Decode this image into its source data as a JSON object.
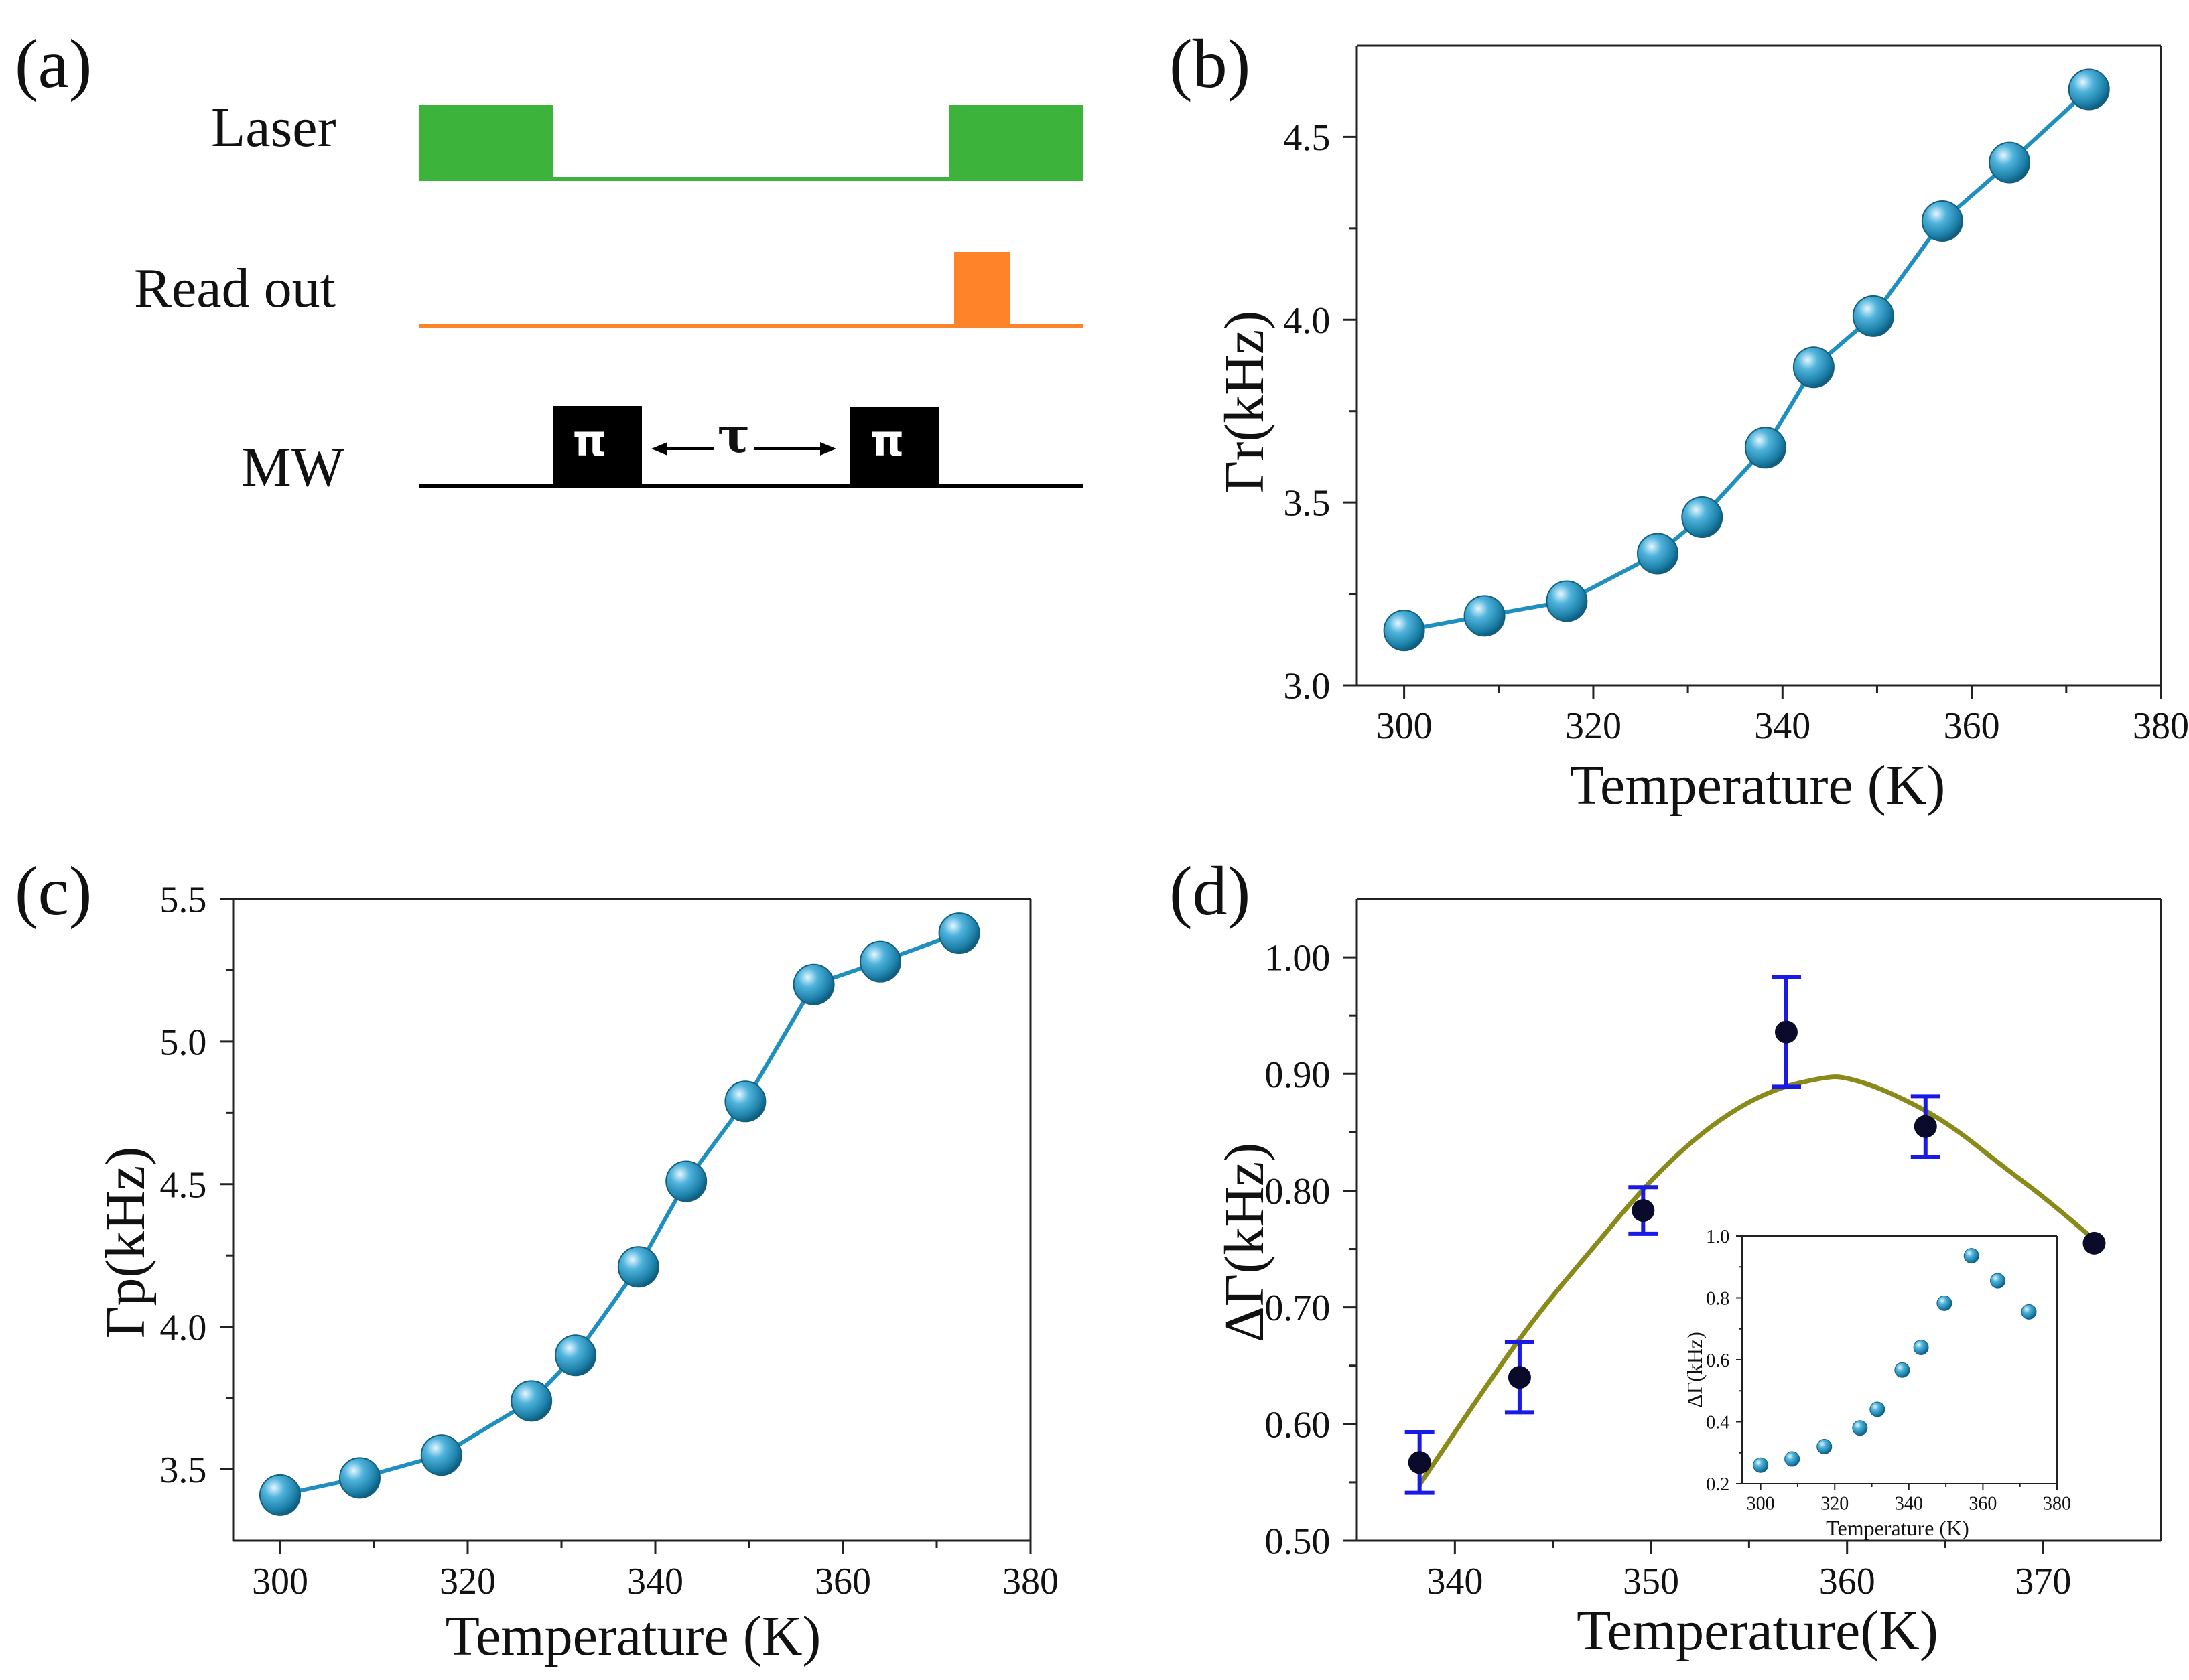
{
  "colors": {
    "laser": "#3cb43c",
    "readout": "#ff8429",
    "mw": "#000000",
    "series": "#1f8fbf",
    "marker_light": "#d9f1ff",
    "marker_dark": "#13708f",
    "error_bar": "#1a1ae6",
    "fit": "#8a8a1a",
    "data_point": "#0a0a2a"
  },
  "panel_a": {
    "label": "(a)",
    "laser_label": "Laser",
    "readout_label": "Read out",
    "mw_label": "MW",
    "pi_label": "π",
    "tau_label": "τ"
  },
  "chart_data": [
    {
      "panel": "(b)",
      "type": "line",
      "title": "",
      "xlabel": "Temperature (K)",
      "ylabel": "Γr(kHz)",
      "xlim": [
        295,
        380
      ],
      "ylim": [
        3.0,
        4.75
      ],
      "xticks": [
        300,
        320,
        340,
        360,
        380
      ],
      "yticks": [
        3.0,
        3.5,
        4.0,
        4.5
      ],
      "grid": false,
      "series": [
        {
          "name": "Γr",
          "x": [
            300,
            308.5,
            317.2,
            326.8,
            331.5,
            338.2,
            343.3,
            349.6,
            356.9,
            364.0,
            372.4
          ],
          "values": [
            3.15,
            3.19,
            3.23,
            3.36,
            3.46,
            3.65,
            3.87,
            4.01,
            4.27,
            4.43,
            4.63
          ]
        }
      ]
    },
    {
      "panel": "(c)",
      "type": "line",
      "title": "",
      "xlabel": "Temperature (K)",
      "ylabel": "Γp(kHz)",
      "xlim": [
        295,
        380
      ],
      "ylim": [
        3.25,
        5.5
      ],
      "xticks": [
        300,
        320,
        340,
        360,
        380
      ],
      "yticks": [
        3.5,
        4.0,
        4.5,
        5.0,
        5.5
      ],
      "grid": false,
      "series": [
        {
          "name": "Γp",
          "x": [
            300,
            308.5,
            317.2,
            326.8,
            331.5,
            338.2,
            343.3,
            349.6,
            356.9,
            364.0,
            372.4
          ],
          "values": [
            3.41,
            3.47,
            3.55,
            3.74,
            3.9,
            4.21,
            4.51,
            4.79,
            5.2,
            5.28,
            5.38
          ]
        }
      ]
    },
    {
      "panel": "(d)",
      "type": "scatter",
      "title": "",
      "xlabel": "Temperature(K)",
      "ylabel": "ΔΓ(kHz)",
      "xlim": [
        335,
        376
      ],
      "ylim": [
        0.5,
        1.05
      ],
      "xticks": [
        340,
        350,
        360,
        370
      ],
      "yticks": [
        0.5,
        0.6,
        0.7,
        0.8,
        0.9,
        1.0
      ],
      "grid": false,
      "series": [
        {
          "name": "ΔΓ",
          "x": [
            338.2,
            343.3,
            349.6,
            356.9,
            364.0,
            372.6
          ],
          "values": [
            0.567,
            0.64,
            0.783,
            0.936,
            0.855,
            0.755
          ],
          "errors": [
            0.026,
            0.03,
            0.02,
            0.047,
            0.026,
            0.0
          ]
        },
        {
          "name": "fit",
          "type": "line",
          "x": [
            338.2,
            341,
            344,
            347,
            350,
            353,
            356,
            359,
            360,
            362,
            365,
            368,
            370,
            372.6
          ],
          "values": [
            0.548,
            0.618,
            0.69,
            0.75,
            0.81,
            0.856,
            0.886,
            0.898,
            0.897,
            0.886,
            0.86,
            0.82,
            0.795,
            0.758
          ]
        }
      ],
      "inset": {
        "type": "scatter",
        "xlabel": "Temperature (K)",
        "ylabel": "ΔΓ(kHz)",
        "xlim": [
          295,
          380
        ],
        "ylim": [
          0.2,
          1.0
        ],
        "xticks": [
          300,
          320,
          340,
          360,
          380
        ],
        "yticks": [
          0.2,
          0.4,
          0.6,
          0.8,
          1.0
        ],
        "x": [
          300,
          308.5,
          317.2,
          326.8,
          331.5,
          338.2,
          343.3,
          349.6,
          356.9,
          364.0,
          372.4
        ],
        "values": [
          0.26,
          0.28,
          0.32,
          0.38,
          0.44,
          0.567,
          0.64,
          0.783,
          0.936,
          0.855,
          0.755
        ]
      }
    }
  ]
}
